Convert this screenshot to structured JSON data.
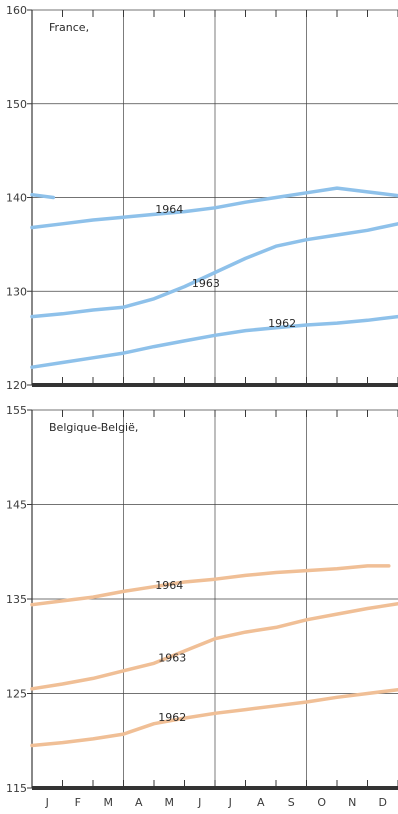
{
  "chart_data": [
    {
      "type": "line",
      "title": "France,",
      "ylim": [
        120,
        160
      ],
      "yticks": [
        120,
        130,
        140,
        150,
        160
      ],
      "x_categories": [
        "J",
        "F",
        "M",
        "A",
        "M",
        "J",
        "J",
        "A",
        "S",
        "O",
        "N",
        "D"
      ],
      "xlim": [
        0,
        12
      ],
      "grid": true,
      "line_color": "#8ec1ea",
      "series": [
        {
          "name": "1964",
          "x": [
            0,
            0.7
          ],
          "y": [
            140.3,
            140.0
          ],
          "label_at": null
        },
        {
          "name": "1964",
          "x": [
            0,
            1,
            2,
            3,
            4,
            5,
            6,
            7,
            8,
            9,
            10,
            11,
            12
          ],
          "y": [
            136.8,
            137.2,
            137.6,
            137.9,
            138.2,
            138.5,
            138.9,
            139.5,
            140.0,
            140.5,
            141.0,
            140.6,
            140.2
          ],
          "label_at": [
            4.5,
            138.8
          ]
        },
        {
          "name": "1963",
          "x": [
            0,
            1,
            2,
            3,
            4,
            5,
            6,
            7,
            8,
            9,
            10,
            11,
            12
          ],
          "y": [
            127.3,
            127.6,
            128.0,
            128.3,
            129.2,
            130.5,
            132.0,
            133.5,
            134.8,
            135.5,
            136.0,
            136.5,
            137.2
          ],
          "label_at": [
            5.7,
            130.9
          ]
        },
        {
          "name": "1962",
          "x": [
            0,
            1,
            2,
            3,
            4,
            5,
            6,
            7,
            8,
            9,
            10,
            11,
            12
          ],
          "y": [
            121.9,
            122.4,
            122.9,
            123.4,
            124.1,
            124.7,
            125.3,
            125.8,
            126.1,
            126.4,
            126.6,
            126.9,
            127.3
          ],
          "label_at": [
            8.2,
            126.6
          ]
        }
      ]
    },
    {
      "type": "line",
      "title": "Belgique-België,",
      "ylim": [
        115,
        155
      ],
      "yticks": [
        115,
        125,
        135,
        145,
        155
      ],
      "x_categories": [
        "J",
        "F",
        "M",
        "A",
        "M",
        "J",
        "J",
        "A",
        "S",
        "O",
        "N",
        "D"
      ],
      "xlim": [
        0,
        12
      ],
      "grid": true,
      "line_color": "#f0bf96",
      "series": [
        {
          "name": "1964",
          "x": [
            0,
            1,
            2,
            3,
            4,
            5,
            6,
            7,
            8,
            9,
            10,
            11,
            11.7
          ],
          "y": [
            134.4,
            134.8,
            135.2,
            135.8,
            136.3,
            136.8,
            137.1,
            137.5,
            137.8,
            138.0,
            138.2,
            138.5,
            138.5
          ],
          "label_at": [
            4.5,
            136.5
          ]
        },
        {
          "name": "1963",
          "x": [
            0,
            1,
            2,
            3,
            4,
            5,
            6,
            7,
            8,
            9,
            10,
            11,
            12
          ],
          "y": [
            125.5,
            126.0,
            126.6,
            127.4,
            128.2,
            129.5,
            130.8,
            131.5,
            132.0,
            132.8,
            133.4,
            134.0,
            134.5
          ],
          "label_at": [
            4.6,
            128.8
          ]
        },
        {
          "name": "1962",
          "x": [
            0,
            1,
            2,
            3,
            4,
            5,
            6,
            7,
            8,
            9,
            10,
            11,
            12
          ],
          "y": [
            119.5,
            119.8,
            120.2,
            120.7,
            121.8,
            122.4,
            122.9,
            123.3,
            123.7,
            124.1,
            124.6,
            125.0,
            125.4
          ],
          "label_at": [
            4.6,
            122.5
          ]
        }
      ]
    }
  ]
}
